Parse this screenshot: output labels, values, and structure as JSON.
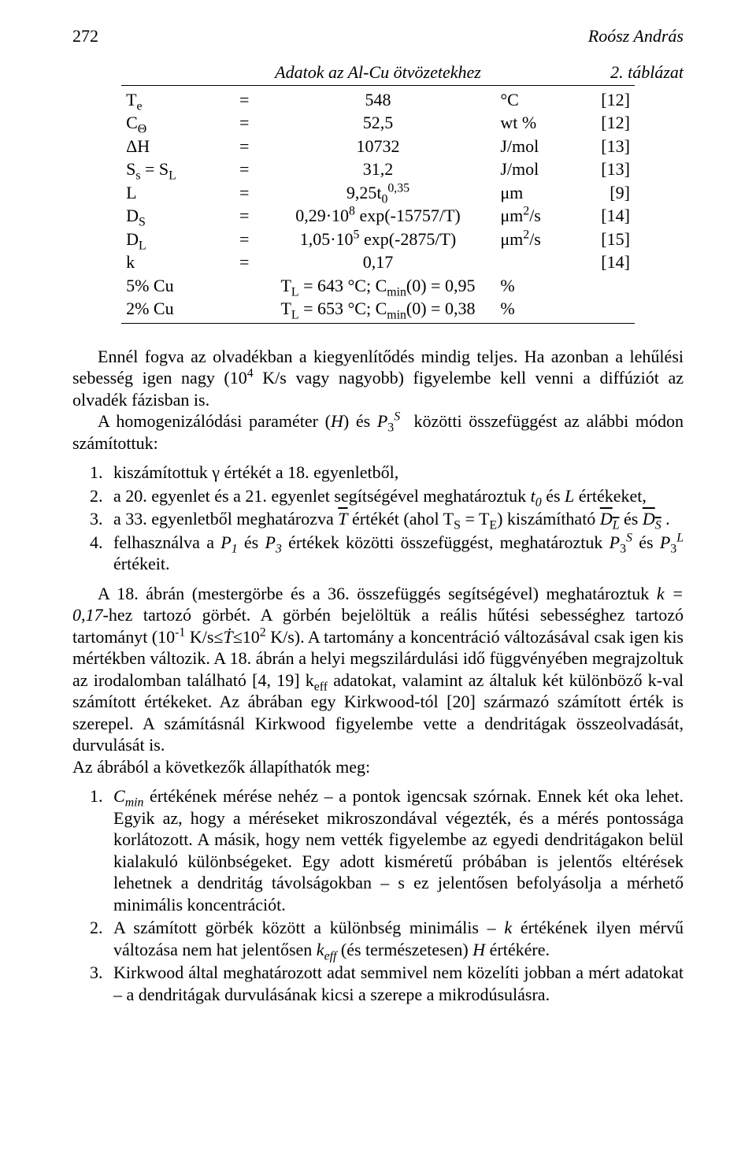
{
  "header": {
    "page_number": "272",
    "author": "Roósz András"
  },
  "table": {
    "caption_center": "Adatok az Al-Cu ötvözetekhez",
    "caption_right": "2. táblázat",
    "rows": [
      {
        "c1": "T<sub>e</sub>",
        "c2": "=",
        "c3": "548",
        "c4": "°C",
        "c5": "[12]"
      },
      {
        "c1": "C<sub>Θ</sub>",
        "c2": "=",
        "c3": "52,5",
        "c4": "wt %",
        "c5": "[12]"
      },
      {
        "c1": "ΔH",
        "c2": "=",
        "c3": "10732",
        "c4": "J/mol",
        "c5": "[13]"
      },
      {
        "c1": "S<sub>s</sub> = S<sub>L</sub>",
        "c2": "=",
        "c3": "31,2",
        "c4": "J/mol",
        "c5": "[13]"
      },
      {
        "c1": "L",
        "c2": "=",
        "c3": "9,25t<sub>0</sub><sup>0,35</sup>",
        "c4": "μm",
        "c5": "[9]"
      },
      {
        "c1": "D<sub>S</sub>",
        "c2": "=",
        "c3": "0,29·10<sup>8</sup> exp(-15757/T)",
        "c4": "μm<sup>2</sup>/s",
        "c5": "[14]"
      },
      {
        "c1": "D<sub>L</sub>",
        "c2": "=",
        "c3": "1,05·10<sup>5</sup> exp(-2875/T)",
        "c4": "μm<sup>2</sup>/s",
        "c5": "[15]"
      },
      {
        "c1": "k",
        "c2": "=",
        "c3": "0,17",
        "c4": "",
        "c5": "[14]"
      },
      {
        "c1": "5% Cu",
        "c2": "",
        "c3": "T<sub>L</sub> = 643 °C; C<sub>min</sub>(0) = 0,95",
        "c4": "%",
        "c5": ""
      },
      {
        "c1": "2% Cu",
        "c2": "",
        "c3": "T<sub>L</sub> = 653 °C; C<sub>min</sub>(0) = 0,38",
        "c4": "%",
        "c5": ""
      }
    ]
  },
  "paragraphs": {
    "p1": "Ennél fogva az olvadékban a kiegyenlítődés mindig teljes. Ha azonban a lehűlési sebesség igen nagy (10<sup>4</sup> K/s vagy nagyobb) figyelembe kell venni a diffúziót az olvadék fázisban is.",
    "p2": "A homogenizálódási paraméter (<span class=\"ital\">H</span>) és <span class=\"ital\">P</span><sub>3</sub><sup><span class=\"ital\">S</span></sup>&nbsp; közötti összefüggést az alábbi módon számítottuk:",
    "p3_items": [
      "kiszámítottuk γ értékét a 18. egyenletből,",
      "a 20. egyenlet és a 21. egyenlet segítségével meghatároztuk <span class=\"ital\">t<sub>0</sub></span> és <span class=\"ital\">L</span> értékeket,",
      "a 33. egyenletből meghatározva <span class=\"ov\"><span class=\"ital\">T</span></span> értékét (ahol T<sub>S</sub> = T<sub>E</sub>) kiszámítható <span class=\"ov\"><span class=\"ital\">D<sub>L</sub></span></span> és <span class=\"ov\"><span class=\"ital\">D<sub>S</sub></span></span> .",
      "felhasználva a <span class=\"ital\">P<sub>1</sub></span> és <span class=\"ital\">P<sub>3</sub></span> értékek közötti összefüggést, meghatároztuk <span class=\"ital\">P</span><sub>3</sub><sup><span class=\"ital\">S</span></sup> és <span class=\"ital\">P</span><sub>3</sub><sup><span class=\"ital\">L</span></sup> értékeit."
    ],
    "p4": "A 18. ábrán (mestergörbe és a 36. összefüggés segítségével) meghatároztuk <span class=\"ital\">k = 0,17</span>-hez tartozó görbét. A görbén bejelöltük a reális hűtési sebességhez tartozó tartományt (10<sup>-1</sup> K/s≤<span class=\"ital\">Ṫ</span>≤10<sup>2</sup> K/s). A tartomány a koncentráció változásával csak igen kis mértékben változik. A 18. ábrán a helyi megszilárdulási idő függvényében megrajzoltuk az irodalomban található [4, 19] k<sub>eff</sub> adatokat, valamint az általuk két különböző k-val számított értékeket. Az ábrában egy Kirkwood-tól [20] származó számított érték is szerepel. A számításnál Kirkwood figyelembe vette a dendritágak összeolvadását, durvulását is.",
    "p4b": "Az ábrából a következők állapíthatók meg:",
    "p5_items": [
      "<span class=\"ital\">C<sub>min</sub></span> értékének mérése nehéz – a pontok igencsak szórnak. Ennek két oka lehet. Egyik az, hogy a méréseket mikroszondával végezték, és a mérés pontossága korlátozott. A másik, hogy nem vették figyelembe az egyedi dendritágakon belül kialakuló különbségeket. Egy adott kisméretű próbában is jelentős eltérések lehetnek a dendritág távolságokban – s ez jelentősen befolyásolja a mérhető minimális koncentrációt.",
      "A számított görbék között a különbség minimális – <span class=\"ital\">k</span> értékének ilyen mérvű változása nem hat jelentősen <span class=\"ital\">k<sub>eff</sub></span> (és természetesen) <span class=\"ital\">H</span> értékére.",
      "Kirkwood által meghatározott adat semmivel nem közelíti jobban a mért adatokat – a dendritágak durvulásának kicsi a szerepe a mikrodúsulásra."
    ]
  }
}
